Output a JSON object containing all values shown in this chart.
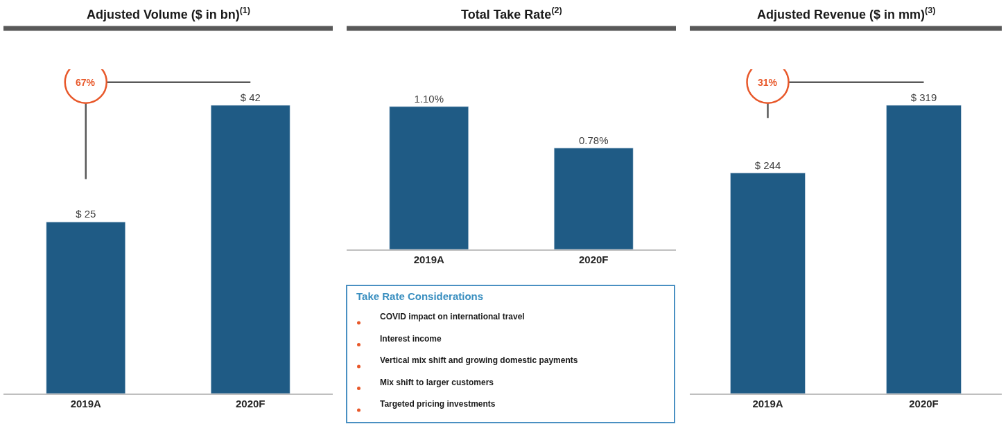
{
  "chart_data": [
    {
      "type": "bar",
      "title": "Adjusted Volume ($ in bn)$^{(1)}$",
      "categories": [
        "2019A",
        "2020F"
      ],
      "values": [
        25,
        42
      ],
      "value_labels": [
        "$ 25",
        "$ 42"
      ],
      "color": "#1f5b85",
      "tick_labels": "x",
      "annotations": [
        "67%"
      ]
    },
    {
      "type": "bar",
      "title": "Total Take Rate$^{(2)}$",
      "categories": [
        "2019A",
        "2020F"
      ],
      "values": [
        1.1,
        0.78
      ],
      "value_labels": [
        "1.10%",
        "0.78%"
      ],
      "color": "#1f5b85",
      "tick_labels": "x"
    },
    {
      "type": "bar",
      "title": "Adjusted Revenue ($ in mm)$^{(3)}$",
      "categories": [
        "2019A",
        "2020F"
      ],
      "values": [
        244,
        319
      ],
      "value_labels": [
        "$ 244",
        "$ 319"
      ],
      "color": "#1f5b85",
      "tick_labels": "x",
      "annotations": [
        "31%"
      ]
    },
    {
      "type": "other",
      "title": "Take Rate Considerations",
      "annotations": [
        "COVID impact on international travel",
        "Interest income",
        "Vertical mix shift and growing domestic payments",
        "Mix shift to larger customers",
        "Targeted pricing investments"
      ]
    }
  ]
}
